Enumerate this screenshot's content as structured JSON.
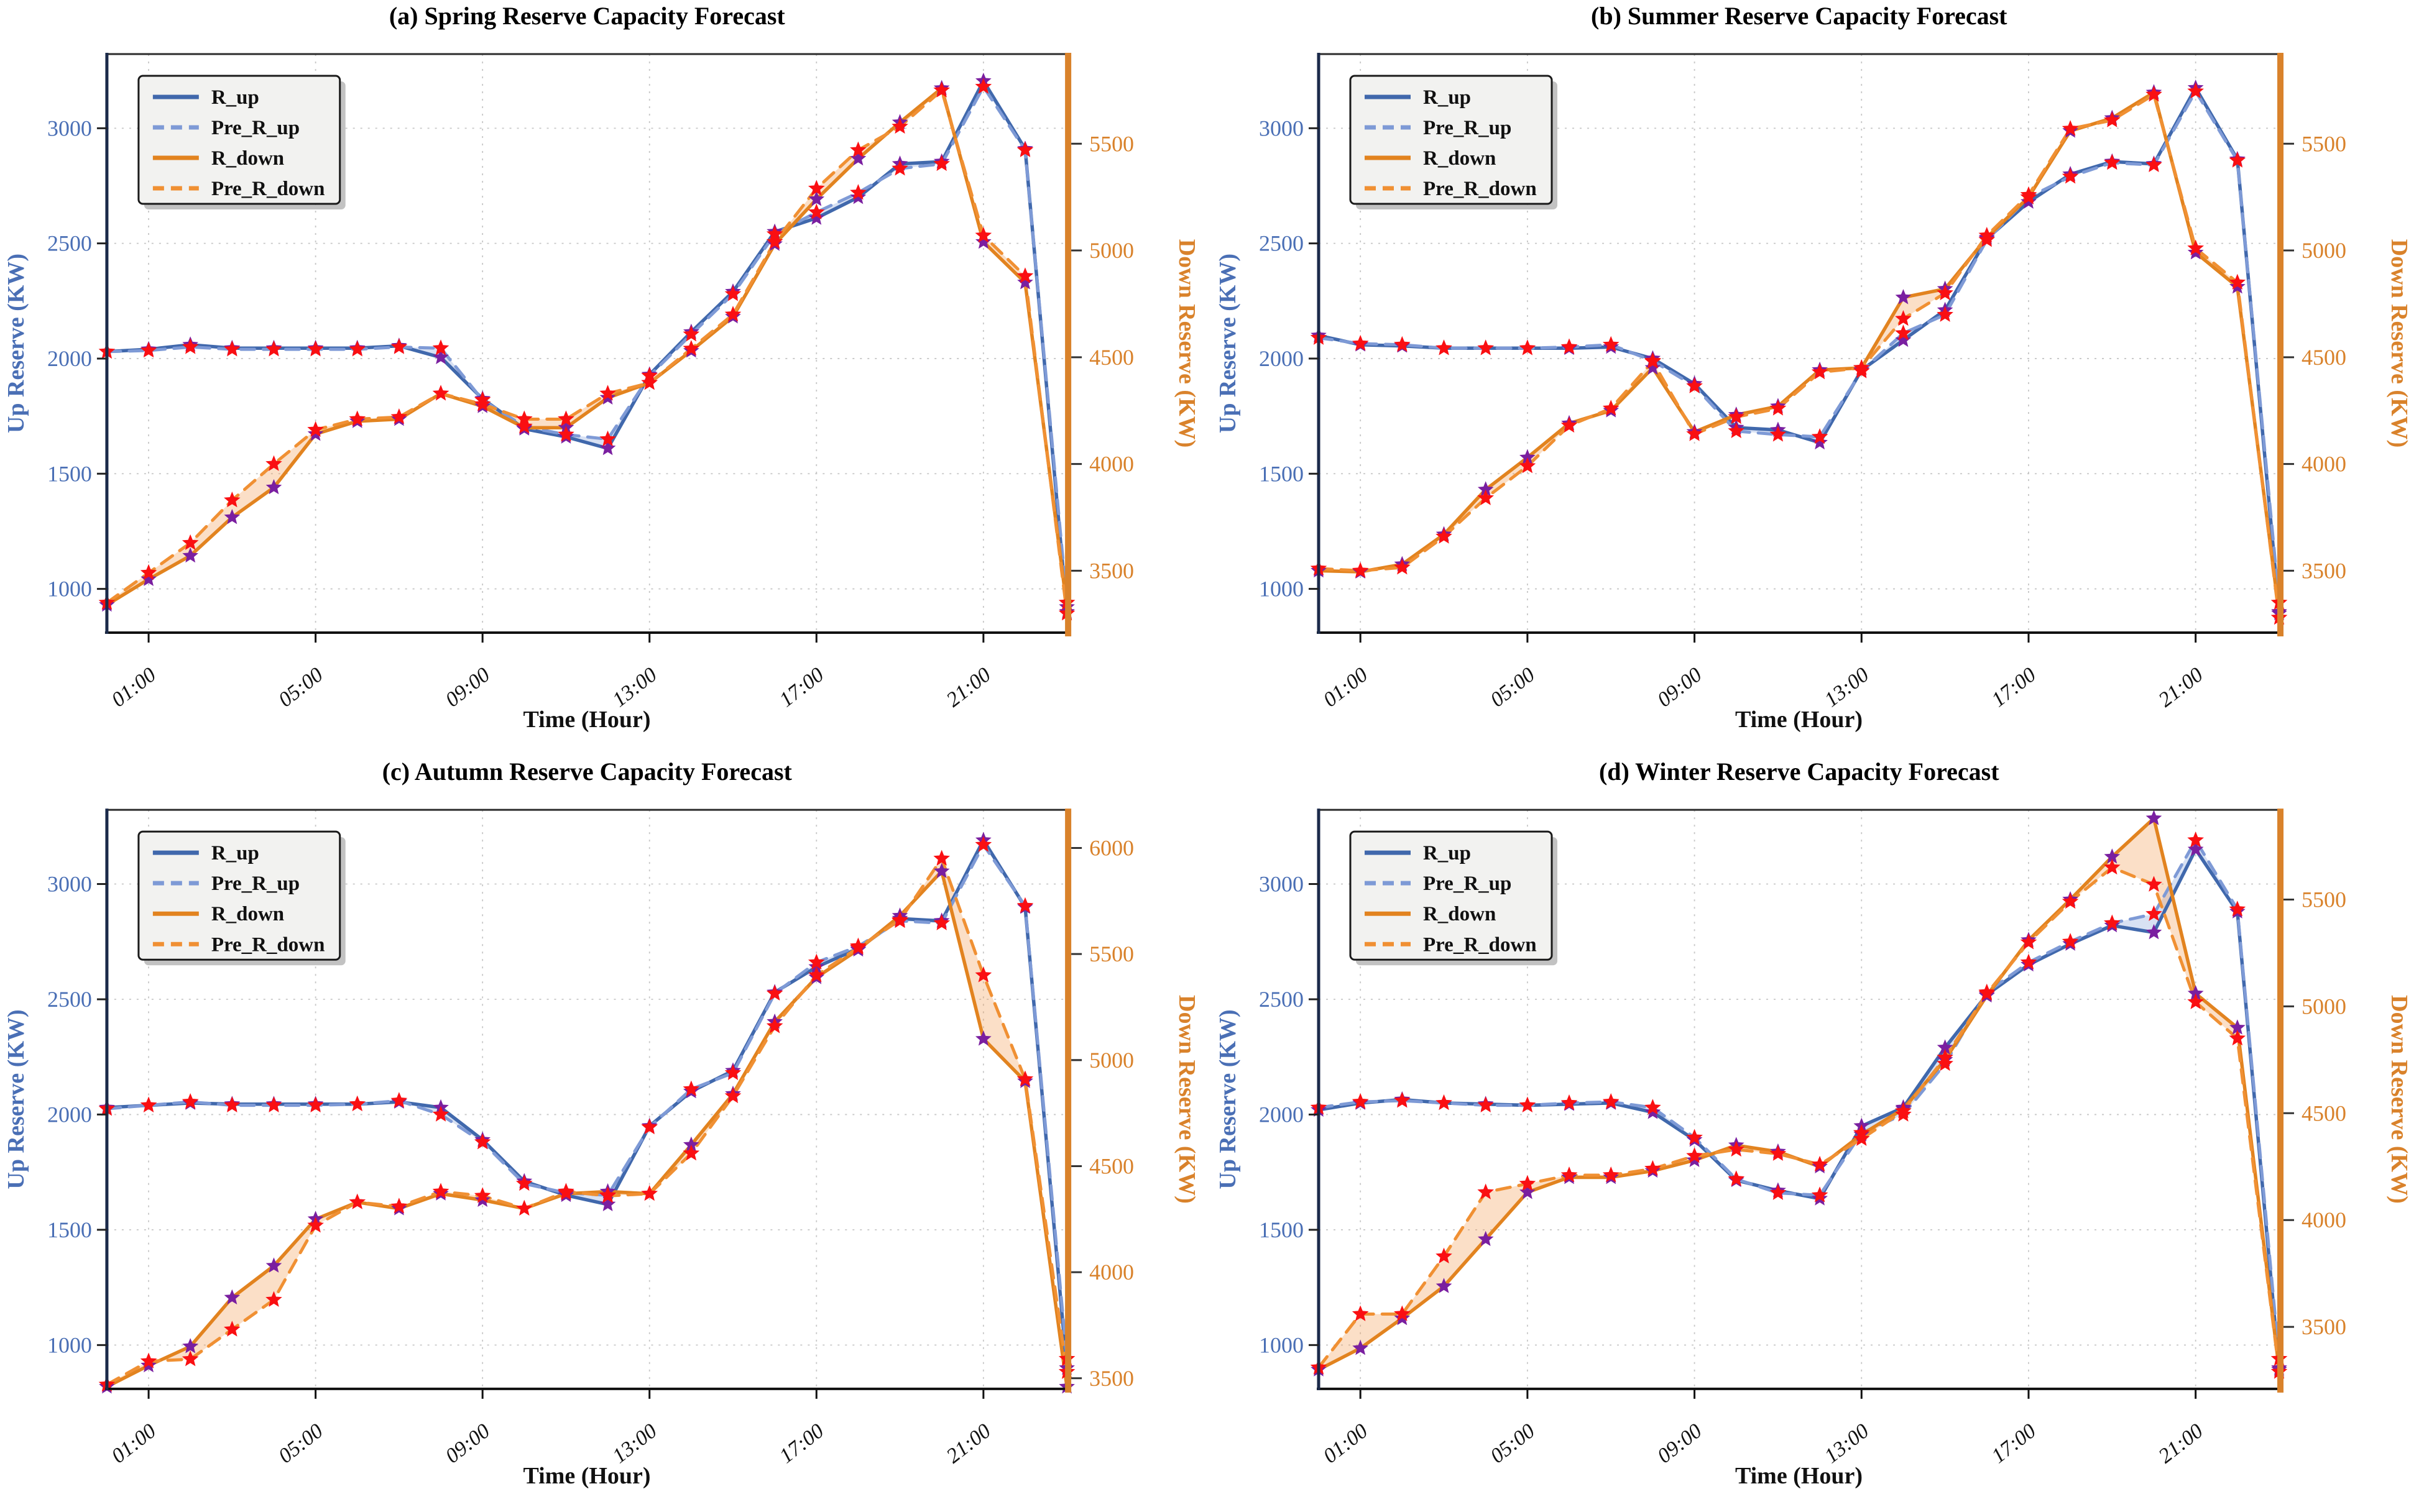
{
  "legend_labels": [
    "R_up",
    "Pre_R_up",
    "R_down",
    "Pre_R_down"
  ],
  "style": {
    "blue_solid": "#4068AC",
    "blue_dashed": "#7E9AD6",
    "orange_solid": "#E2831F",
    "orange_dashed": "#F09033",
    "fill_blue": "rgba(126,154,214,0.30)",
    "fill_orange": "rgba(242,156,80,0.32)",
    "marker_actual": "#7A1FA0",
    "marker_pred": "#FA0F12",
    "axis_blue": "#4A6FB5",
    "axis_orange": "#D9822B",
    "grid": "#C7C7C7",
    "spine_dark": "#1B2A4A",
    "spine_black": "#111111",
    "legend_bg": "#F2F2F0",
    "text_black": "#111111"
  },
  "chart_data": [
    {
      "type": "line",
      "title": "(a) Spring Reserve Capacity Forecast",
      "xlabel": "Time (Hour)",
      "ylabel_left": "Up Reserve (KW)",
      "ylabel_right": "Down Reserve (KW)",
      "x_ticks": {
        "hours": [
          1,
          5,
          9,
          13,
          17,
          21
        ],
        "labels": [
          "01:00",
          "05:00",
          "09:00",
          "13:00",
          "17:00",
          "21:00"
        ]
      },
      "left_axis": {
        "min": 810,
        "max": 3322,
        "ticks": [
          1000,
          1500,
          2000,
          2500,
          3000
        ]
      },
      "right_axis": {
        "min": 3210,
        "max": 5920,
        "ticks": [
          3500,
          4000,
          4500,
          5000,
          5500
        ]
      },
      "series": [
        {
          "name": "R_up",
          "axis": "left",
          "style": "solid",
          "color_key": "blue_solid",
          "marker": "actual",
          "values": [
            2030,
            2040,
            2060,
            2045,
            2045,
            2045,
            2045,
            2055,
            2005,
            1825,
            1695,
            1660,
            1610,
            1930,
            2115,
            2290,
            2550,
            2610,
            2700,
            2845,
            2855,
            3205,
            2910,
            900
          ]
        },
        {
          "name": "Pre_R_up",
          "axis": "left",
          "style": "dashed",
          "color_key": "blue_dashed",
          "marker": "pred",
          "values": [
            2030,
            2035,
            2050,
            2040,
            2040,
            2040,
            2040,
            2050,
            2045,
            1820,
            1705,
            1670,
            1650,
            1925,
            2105,
            2280,
            2540,
            2635,
            2720,
            2825,
            2845,
            3180,
            2905,
            940
          ]
        },
        {
          "name": "R_down",
          "axis": "right",
          "style": "solid",
          "color_key": "orange_solid",
          "marker": "actual",
          "values": [
            3340,
            3460,
            3570,
            3750,
            3890,
            4140,
            4200,
            4210,
            4330,
            4270,
            4170,
            4170,
            4310,
            4380,
            4530,
            4690,
            5030,
            5240,
            5430,
            5600,
            5760,
            5040,
            4850,
            3330
          ]
        },
        {
          "name": "Pre_R_down",
          "axis": "right",
          "style": "dashed",
          "color_key": "orange_dashed",
          "marker": "pred",
          "values": [
            3350,
            3490,
            3630,
            3830,
            4000,
            4160,
            4210,
            4220,
            4330,
            4280,
            4210,
            4210,
            4330,
            4380,
            4540,
            4700,
            5040,
            5290,
            5470,
            5580,
            5750,
            5070,
            4880,
            3300
          ]
        }
      ],
      "fills": [
        {
          "between": [
            0,
            1
          ],
          "color_key": "fill_blue"
        },
        {
          "between": [
            2,
            3
          ],
          "color_key": "fill_orange"
        }
      ]
    },
    {
      "type": "line",
      "title": "(b) Summer Reserve Capacity Forecast",
      "xlabel": "Time (Hour)",
      "ylabel_left": "Up Reserve (KW)",
      "ylabel_right": "Down Reserve (KW)",
      "x_ticks": {
        "hours": [
          1,
          5,
          9,
          13,
          17,
          21
        ],
        "labels": [
          "01:00",
          "05:00",
          "09:00",
          "13:00",
          "17:00",
          "21:00"
        ]
      },
      "left_axis": {
        "min": 810,
        "max": 3322,
        "ticks": [
          1000,
          1500,
          2000,
          2500,
          3000
        ]
      },
      "right_axis": {
        "min": 3210,
        "max": 5920,
        "ticks": [
          3500,
          4000,
          4500,
          5000,
          5500
        ]
      },
      "series": [
        {
          "name": "R_up",
          "axis": "left",
          "style": "solid",
          "color_key": "blue_solid",
          "marker": "actual",
          "values": [
            2100,
            2060,
            2055,
            2045,
            2045,
            2045,
            2045,
            2050,
            2000,
            1890,
            1700,
            1690,
            1635,
            1950,
            2080,
            2210,
            2520,
            2680,
            2800,
            2855,
            2845,
            3175,
            2865,
            900
          ]
        },
        {
          "name": "Pre_R_up",
          "axis": "left",
          "style": "dashed",
          "color_key": "blue_dashed",
          "marker": "pred",
          "values": [
            2090,
            2065,
            2060,
            2045,
            2045,
            2045,
            2050,
            2060,
            1990,
            1880,
            1685,
            1670,
            1660,
            1945,
            2110,
            2190,
            2515,
            2700,
            2790,
            2850,
            2840,
            3160,
            2860,
            940
          ]
        },
        {
          "name": "R_down",
          "axis": "right",
          "style": "solid",
          "color_key": "orange_solid",
          "marker": "actual",
          "values": [
            3500,
            3495,
            3530,
            3670,
            3880,
            4030,
            4190,
            4250,
            4450,
            4150,
            4230,
            4270,
            4440,
            4450,
            4780,
            4820,
            5060,
            5250,
            5560,
            5620,
            5740,
            4990,
            4830,
            3300
          ]
        },
        {
          "name": "Pre_R_down",
          "axis": "right",
          "style": "dashed",
          "color_key": "orange_dashed",
          "marker": "pred",
          "values": [
            3510,
            3500,
            3515,
            3660,
            3840,
            3990,
            4180,
            4260,
            4480,
            4140,
            4220,
            4260,
            4430,
            4450,
            4680,
            4800,
            5070,
            5260,
            5570,
            5610,
            5730,
            5010,
            4850,
            3280
          ]
        }
      ],
      "fills": [
        {
          "between": [
            0,
            1
          ],
          "color_key": "fill_blue"
        },
        {
          "between": [
            2,
            3
          ],
          "color_key": "fill_orange"
        }
      ]
    },
    {
      "type": "line",
      "title": "(c) Autumn Reserve Capacity Forecast",
      "xlabel": "Time (Hour)",
      "ylabel_left": "Up Reserve (KW)",
      "ylabel_right": "Down Reserve (KW)",
      "x_ticks": {
        "hours": [
          1,
          5,
          9,
          13,
          17,
          21
        ],
        "labels": [
          "01:00",
          "05:00",
          "09:00",
          "13:00",
          "17:00",
          "21:00"
        ]
      },
      "left_axis": {
        "min": 810,
        "max": 3322,
        "ticks": [
          1000,
          1500,
          2000,
          2500,
          3000
        ]
      },
      "right_axis": {
        "min": 3450,
        "max": 6180,
        "ticks": [
          3500,
          4000,
          4500,
          5000,
          5500,
          6000
        ]
      },
      "series": [
        {
          "name": "R_up",
          "axis": "left",
          "style": "solid",
          "color_key": "blue_solid",
          "marker": "actual",
          "values": [
            2030,
            2040,
            2050,
            2045,
            2045,
            2045,
            2045,
            2055,
            2030,
            1890,
            1710,
            1650,
            1610,
            1950,
            2100,
            2190,
            2530,
            2640,
            2720,
            2850,
            2840,
            3190,
            2900,
            900
          ]
        },
        {
          "name": "Pre_R_up",
          "axis": "left",
          "style": "dashed",
          "color_key": "blue_dashed",
          "marker": "pred",
          "values": [
            2025,
            2040,
            2055,
            2040,
            2040,
            2040,
            2045,
            2060,
            2000,
            1880,
            1700,
            1660,
            1650,
            1945,
            2110,
            2180,
            2525,
            2660,
            2730,
            2840,
            2830,
            3170,
            2905,
            940
          ]
        },
        {
          "name": "R_down",
          "axis": "right",
          "style": "solid",
          "color_key": "orange_solid",
          "marker": "actual",
          "values": [
            3460,
            3560,
            3650,
            3880,
            4030,
            4250,
            4330,
            4300,
            4370,
            4340,
            4300,
            4370,
            4380,
            4370,
            4600,
            4840,
            5180,
            5390,
            5520,
            5680,
            5890,
            5100,
            4900,
            3460
          ]
        },
        {
          "name": "Pre_R_down",
          "axis": "right",
          "style": "dashed",
          "color_key": "orange_dashed",
          "marker": "pred",
          "values": [
            3470,
            3580,
            3590,
            3730,
            3870,
            4220,
            4330,
            4310,
            4380,
            4360,
            4300,
            4380,
            4360,
            4370,
            4560,
            4830,
            5160,
            5400,
            5530,
            5660,
            5950,
            5400,
            4910,
            3530
          ]
        }
      ],
      "fills": [
        {
          "between": [
            0,
            1
          ],
          "color_key": "fill_blue"
        },
        {
          "between": [
            2,
            3
          ],
          "color_key": "fill_orange"
        }
      ]
    },
    {
      "type": "line",
      "title": "(d) Winter Reserve Capacity Forecast",
      "xlabel": "Time (Hour)",
      "ylabel_left": "Up Reserve (KW)",
      "ylabel_right": "Down Reserve (KW)",
      "x_ticks": {
        "hours": [
          1,
          5,
          9,
          13,
          17,
          21
        ],
        "labels": [
          "01:00",
          "05:00",
          "09:00",
          "13:00",
          "17:00",
          "21:00"
        ]
      },
      "left_axis": {
        "min": 810,
        "max": 3322,
        "ticks": [
          1000,
          1500,
          2000,
          2500,
          3000
        ]
      },
      "right_axis": {
        "min": 3210,
        "max": 5920,
        "ticks": [
          3500,
          4000,
          4500,
          5000,
          5500
        ]
      },
      "series": [
        {
          "name": "R_up",
          "axis": "left",
          "style": "solid",
          "color_key": "blue_solid",
          "marker": "actual",
          "values": [
            2020,
            2050,
            2065,
            2050,
            2045,
            2040,
            2045,
            2050,
            2010,
            1890,
            1715,
            1670,
            1635,
            1950,
            2030,
            2290,
            2520,
            2650,
            2740,
            2820,
            2790,
            3150,
            2880,
            900
          ]
        },
        {
          "name": "Pre_R_up",
          "axis": "left",
          "style": "dashed",
          "color_key": "blue_dashed",
          "marker": "pred",
          "values": [
            2030,
            2055,
            2060,
            2050,
            2040,
            2040,
            2050,
            2055,
            2030,
            1900,
            1720,
            1660,
            1650,
            1920,
            2000,
            2220,
            2530,
            2660,
            2750,
            2830,
            2870,
            3190,
            2890,
            940
          ]
        },
        {
          "name": "R_down",
          "axis": "right",
          "style": "solid",
          "color_key": "orange_solid",
          "marker": "actual",
          "values": [
            3300,
            3400,
            3540,
            3690,
            3910,
            4130,
            4200,
            4200,
            4230,
            4280,
            4350,
            4320,
            4250,
            4400,
            4520,
            4750,
            5050,
            5310,
            5500,
            5700,
            5880,
            5060,
            4900,
            3300
          ]
        },
        {
          "name": "Pre_R_down",
          "axis": "right",
          "style": "dashed",
          "color_key": "orange_dashed",
          "marker": "pred",
          "values": [
            3310,
            3560,
            3560,
            3830,
            4130,
            4170,
            4210,
            4210,
            4240,
            4300,
            4330,
            4310,
            4260,
            4380,
            4510,
            4760,
            5060,
            5300,
            5490,
            5650,
            5570,
            5020,
            4850,
            3290
          ]
        }
      ],
      "fills": [
        {
          "between": [
            0,
            1
          ],
          "color_key": "fill_blue"
        },
        {
          "between": [
            2,
            3
          ],
          "color_key": "fill_orange"
        }
      ]
    }
  ]
}
